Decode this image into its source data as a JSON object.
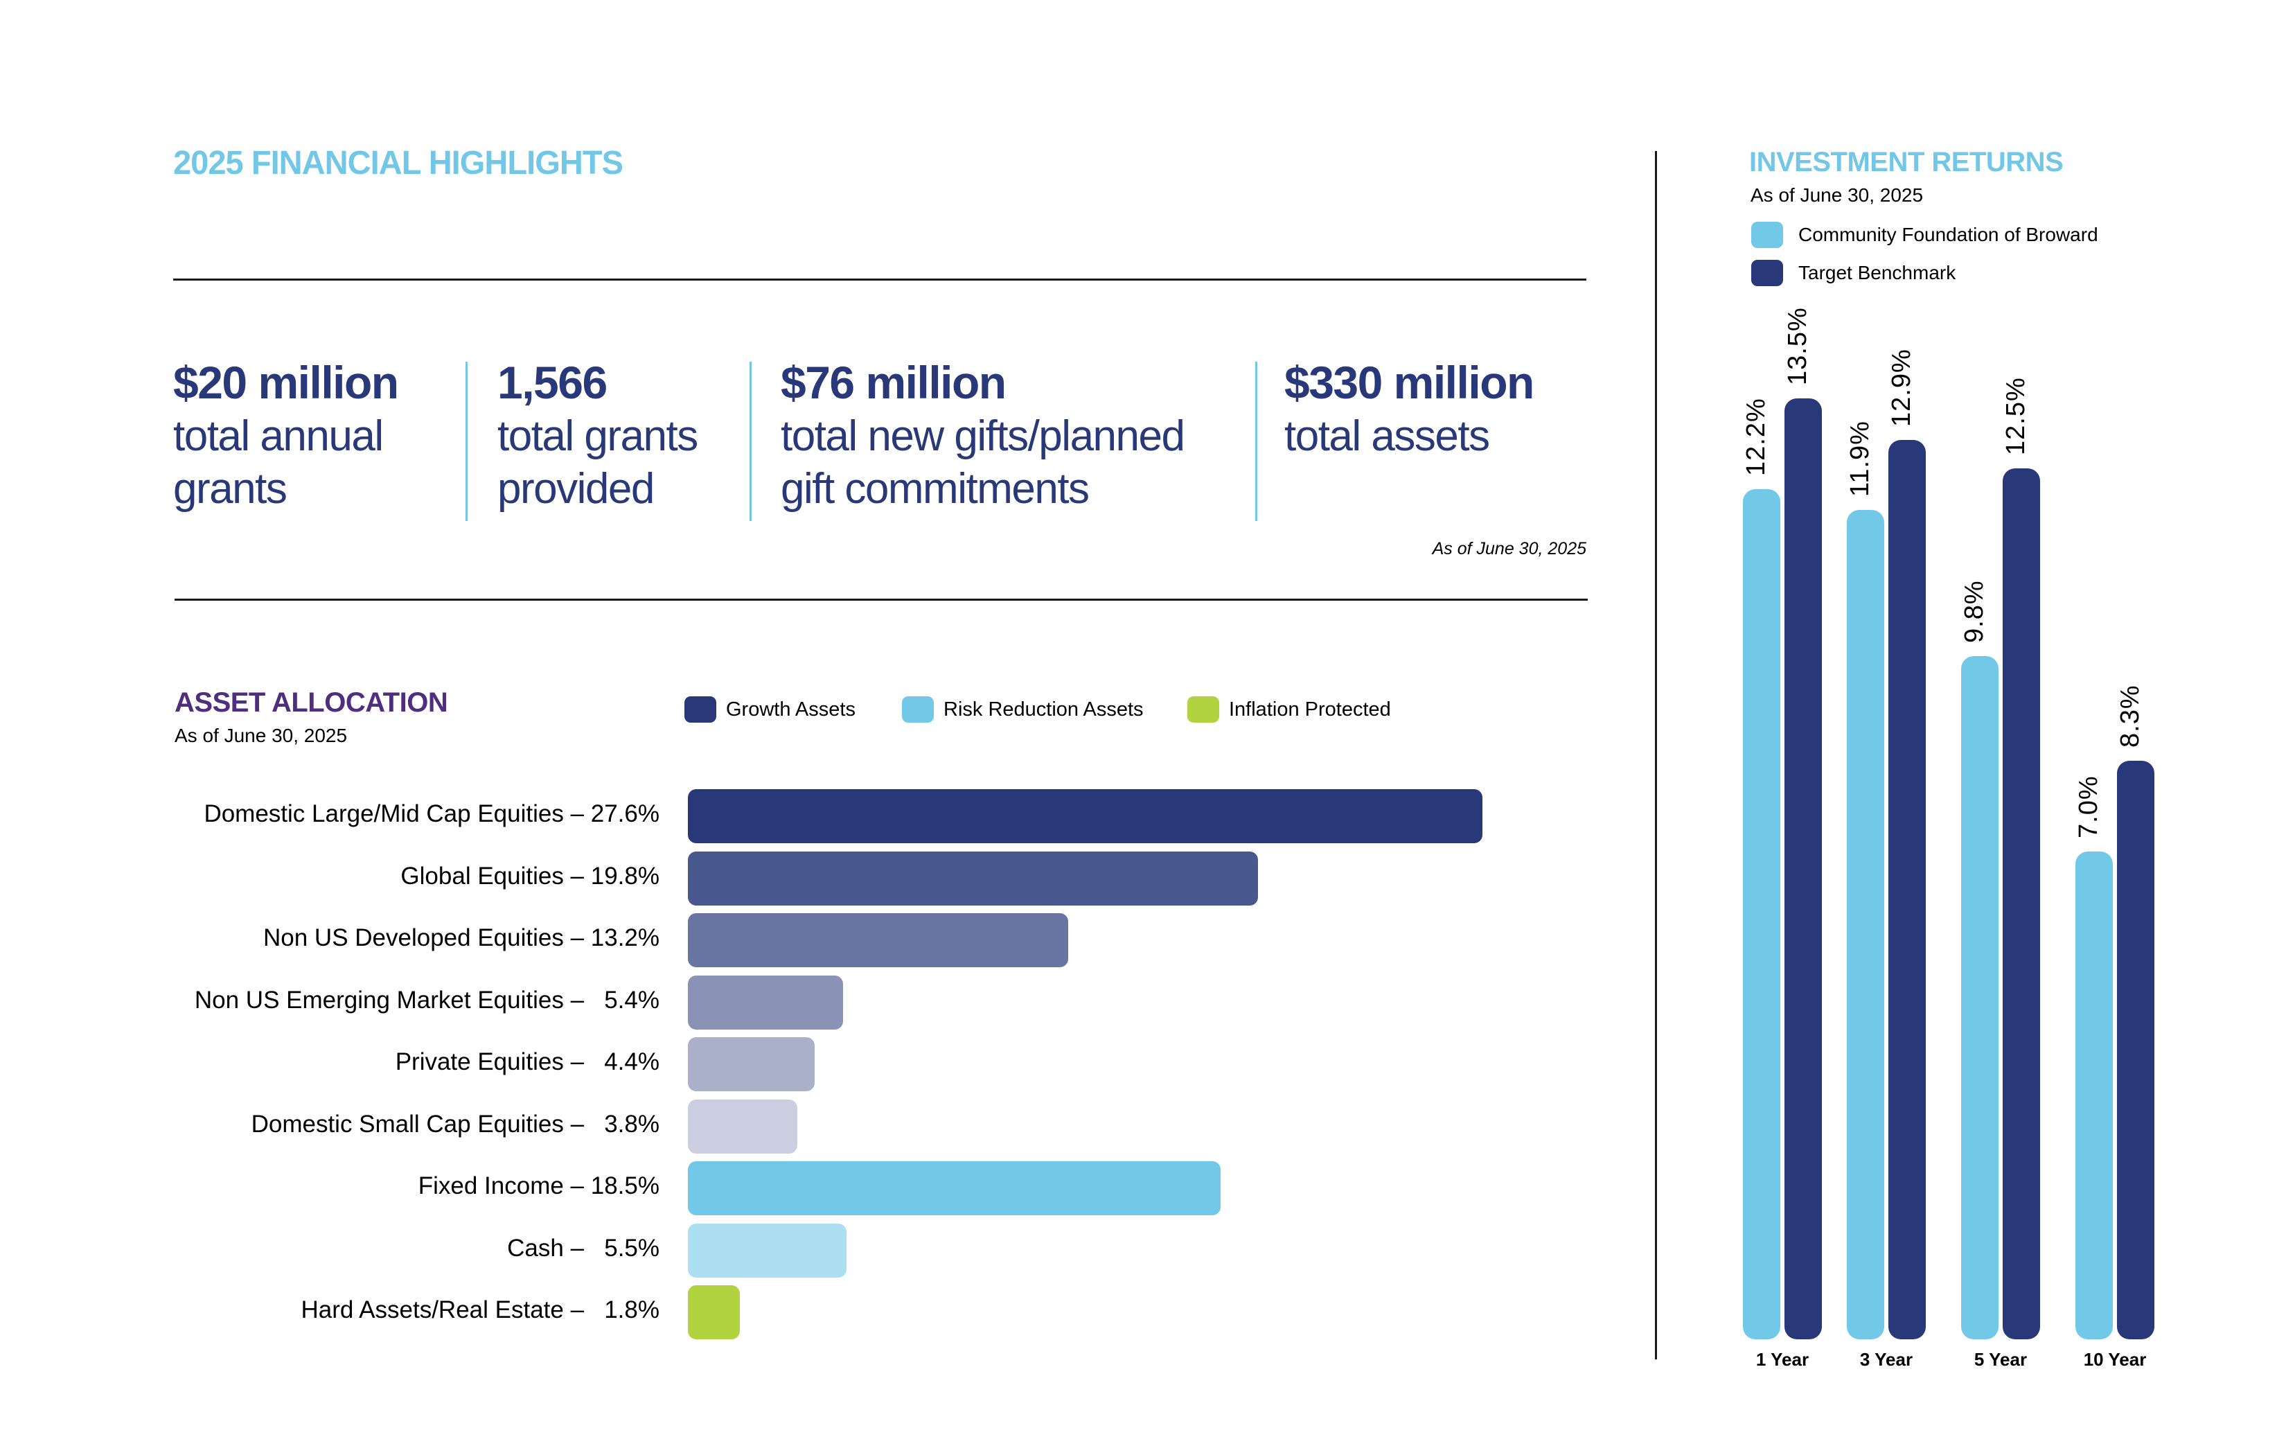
{
  "header": {
    "title": "2025 FINANCIAL HIGHLIGHTS",
    "title_color": "#72c7e6"
  },
  "highlights": [
    {
      "value": "$20 million",
      "desc_line1": "total annual",
      "desc_line2": "grants"
    },
    {
      "value": "1,566",
      "desc_line1": "total grants",
      "desc_line2": "provided"
    },
    {
      "value": "$76 million",
      "desc_line1": "total new gifts/planned",
      "desc_line2": "gift commitments"
    },
    {
      "value": "$330 million",
      "desc_line1": "total assets",
      "desc_line2": ""
    }
  ],
  "highlights_note": "As of June 30, 2025",
  "colors": {
    "navy": "#283878",
    "light_blue": "#72c9e7",
    "green": "#b1d33f",
    "purple": "#4f2d7f"
  },
  "chart_data": [
    {
      "type": "bar",
      "orientation": "horizontal",
      "title": "ASSET ALLOCATION",
      "subtitle": "As of June 30, 2025",
      "legend": [
        {
          "name": "Growth Assets",
          "color": "#283878"
        },
        {
          "name": "Risk Reduction Assets",
          "color": "#72c9e7"
        },
        {
          "name": "Inflation Protected",
          "color": "#b1d33f"
        }
      ],
      "legend_position": "top",
      "categories": [
        "Domestic Large/Mid Cap Equities",
        "Global Equities",
        "Non US Developed Equities",
        "Non US Emerging Market Equities",
        "Private Equities",
        "Domestic Small Cap Equities",
        "Fixed Income",
        "Cash",
        "Hard Assets/Real Estate"
      ],
      "labels": [
        "Domestic Large/Mid Cap Equities – 27.6%",
        "Global Equities – 19.8%",
        "Non US Developed Equities – 13.2%",
        "Non US Emerging Market Equities –   5.4%",
        "Private Equities –   4.4%",
        "Domestic Small Cap Equities –   3.8%",
        "Fixed Income – 18.5%",
        "Cash –   5.5%",
        "Hard Assets/Real Estate –   1.8%"
      ],
      "values": [
        27.6,
        19.8,
        13.2,
        5.4,
        4.4,
        3.8,
        18.5,
        5.5,
        1.8
      ],
      "groups": [
        "Growth Assets",
        "Growth Assets",
        "Growth Assets",
        "Growth Assets",
        "Growth Assets",
        "Growth Assets",
        "Risk Reduction Assets",
        "Risk Reduction Assets",
        "Inflation Protected"
      ],
      "bar_colors": [
        "#283878",
        "#48578c",
        "#6875a1",
        "#8a93b5",
        "#aab0ca",
        "#cacee0",
        "#72c9e7",
        "#abdff1",
        "#b1d33f"
      ],
      "unit": "%",
      "xlim": [
        0,
        27.6
      ]
    },
    {
      "type": "bar",
      "orientation": "vertical",
      "title": "INVESTMENT RETURNS",
      "subtitle": "As of June 30, 2025",
      "categories": [
        "1 Year",
        "3 Year",
        "5 Year",
        "10 Year"
      ],
      "series": [
        {
          "name": "Community Foundation of Broward",
          "color": "#72c9e7",
          "values": [
            12.2,
            11.9,
            9.8,
            7.0
          ],
          "labels": [
            "12.2%",
            "11.9%",
            "9.8%",
            "7.0%"
          ]
        },
        {
          "name": "Target Benchmark",
          "color": "#283878",
          "values": [
            13.5,
            12.9,
            12.5,
            8.3
          ],
          "labels": [
            "13.5%",
            "12.9%",
            "12.5%",
            "8.3%"
          ]
        }
      ],
      "legend_position": "top-left",
      "unit": "%",
      "ylim": [
        0,
        13.5
      ]
    }
  ]
}
